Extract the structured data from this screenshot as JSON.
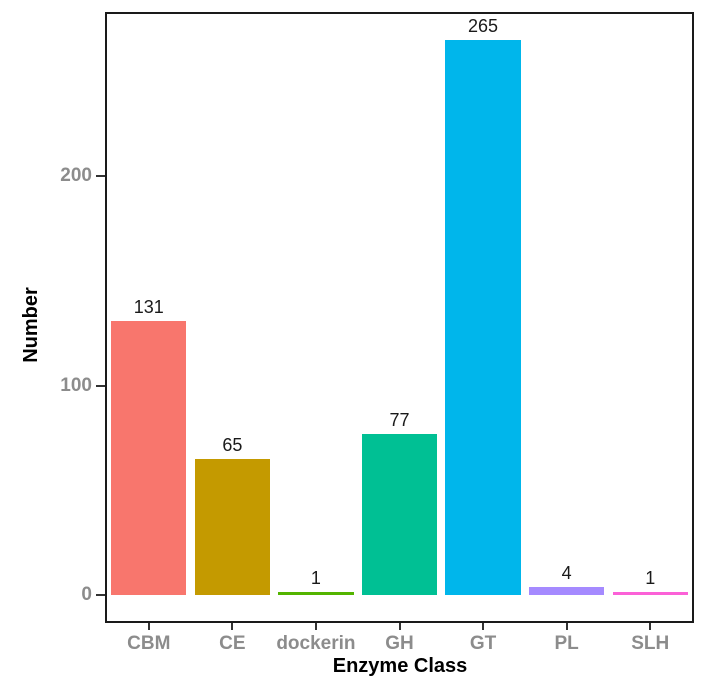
{
  "chart_data": {
    "type": "bar",
    "title": "",
    "xlabel": "Enzyme Class",
    "ylabel": "Number",
    "categories": [
      "CBM",
      "CE",
      "dockerin",
      "GH",
      "GT",
      "PL",
      "SLH"
    ],
    "values": [
      131,
      65,
      1,
      77,
      265,
      4,
      1
    ],
    "bar_labels": [
      "131",
      "65",
      "1",
      "77",
      "265",
      "4",
      "1"
    ],
    "colors": [
      "#F8766D",
      "#C49A00",
      "#53B400",
      "#00C094",
      "#00B6EB",
      "#A58AFF",
      "#FB61D7"
    ],
    "y_ticks": [
      0,
      100,
      200
    ],
    "ylim": [
      -13,
      278
    ],
    "grid": false,
    "legend": false,
    "panel_border_color": "#1a1a1a",
    "tick_mark_color": "#333333",
    "axis_text_color": "#8c8c8c",
    "axis_title_color": "#000000",
    "value_label_color": "#1a1a1a"
  }
}
